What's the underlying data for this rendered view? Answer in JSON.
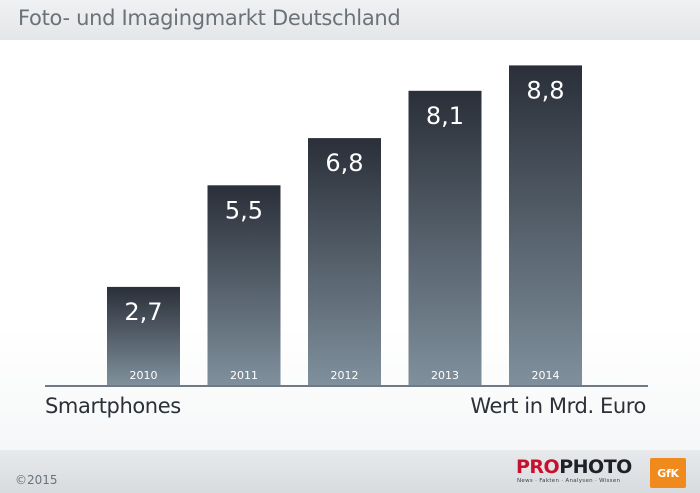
{
  "title": "Foto- und Imagingmarkt Deutschland",
  "chart_data": {
    "type": "bar",
    "categories": [
      "2010",
      "2011",
      "2012",
      "2013",
      "2014"
    ],
    "values": [
      2.7,
      5.5,
      6.8,
      8.1,
      8.8
    ],
    "value_labels": [
      "2,7",
      "5,5",
      "6,8",
      "8,1",
      "8,8"
    ],
    "subject_label": "Smartphones",
    "unit_label": "Wert in Mrd. Euro",
    "ylim": [
      0,
      9.5
    ],
    "grid": false,
    "colors": {
      "bar_top": "#2a2f39",
      "bar_bottom": "#7f909c",
      "value_text": "#ffffff",
      "axis": "#6f7a84"
    }
  },
  "footer": {
    "copyright": "©2015",
    "brand_part1": "PRO",
    "brand_part2": "PHOTO",
    "brand_tagline": "News · Fakten · Analysen · Wissen",
    "partner_logo": "GfK"
  }
}
